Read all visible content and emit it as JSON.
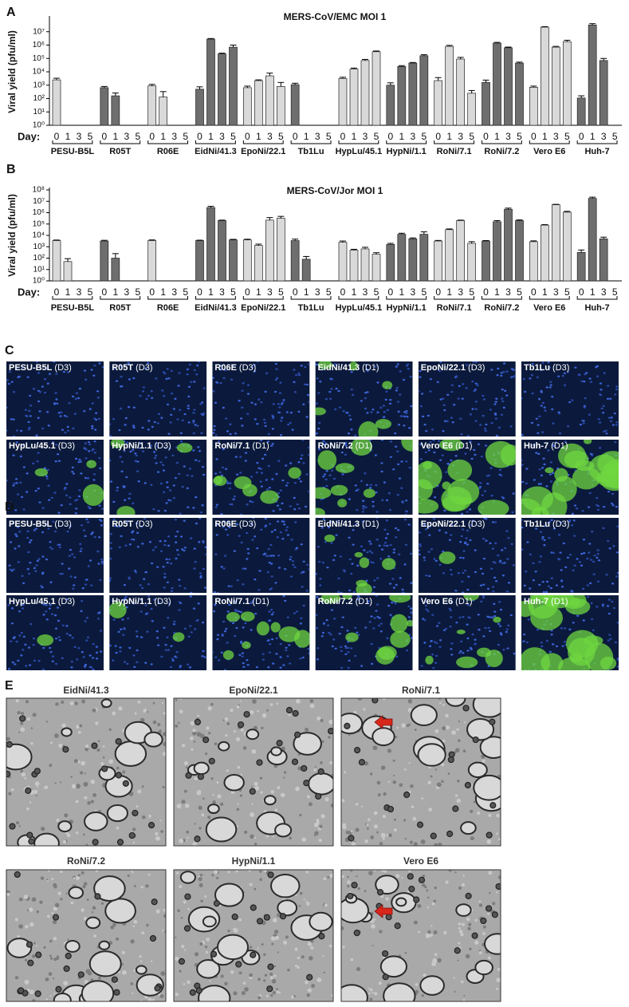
{
  "chart_data": [
    {
      "type": "bar",
      "panel": "A",
      "title": "MERS-CoV/EMC MOI 1",
      "ylabel": "Viral yield (pfu/ml)",
      "x_prefix": "Day:",
      "categories": [
        "PESU-B5L",
        "R05T",
        "R06E",
        "EidNi/41.3",
        "EpoNi/22.1",
        "Tb1Lu",
        "HypLu/45.1",
        "HypNi/1.1",
        "RoNi/7.1",
        "RoNi/7.2",
        "Vero E6",
        "Huh-7"
      ],
      "bar_colors": [
        "#d9d9d9",
        "#6e6e6e",
        "#d9d9d9",
        "#6e6e6e",
        "#d9d9d9",
        "#6e6e6e",
        "#d9d9d9",
        "#6e6e6e",
        "#d9d9d9",
        "#6e6e6e",
        "#d9d9d9",
        "#6e6e6e"
      ],
      "series": [
        {
          "name": "0",
          "values": [
            2500,
            650,
            900,
            500,
            650,
            1100,
            3200,
            1000,
            2200,
            1600,
            700,
            110
          ],
          "errors": [
            800,
            150,
            250,
            250,
            200,
            300,
            700,
            500,
            1500,
            800,
            150,
            50
          ]
        },
        {
          "name": "1",
          "values": [
            null,
            160,
            130,
            2800000,
            2200,
            null,
            16000,
            25000,
            800000,
            1400000,
            22000000,
            32000000
          ],
          "errors": [
            null,
            100,
            200,
            300000,
            300,
            null,
            3000,
            4000,
            150000,
            200000,
            2000000,
            8000000
          ]
        },
        {
          "name": "3",
          "values": [
            null,
            null,
            null,
            220000,
            5000,
            null,
            70000,
            45000,
            90000,
            630000,
            700000,
            70000
          ],
          "errors": [
            null,
            null,
            null,
            30000,
            3000,
            null,
            15000,
            5000,
            30000,
            80000,
            100000,
            30000
          ]
        },
        {
          "name": "5",
          "values": [
            null,
            null,
            null,
            700000,
            800,
            null,
            320000,
            160000,
            250,
            45000,
            1800000,
            null
          ],
          "errors": [
            null,
            null,
            null,
            300000,
            800,
            null,
            40000,
            30000,
            150,
            8000,
            500000,
            null
          ]
        }
      ],
      "log_scale": true,
      "ylim": [
        1,
        100000000
      ],
      "yticks": [
        {
          "value": 1,
          "label": "10⁰"
        },
        {
          "value": 10,
          "label": "10¹"
        },
        {
          "value": 100,
          "label": "10²"
        },
        {
          "value": 1000,
          "label": "10³"
        },
        {
          "value": 10000,
          "label": "10⁴"
        },
        {
          "value": 100000,
          "label": "10⁵"
        },
        {
          "value": 1000000,
          "label": "10⁶"
        },
        {
          "value": 10000000,
          "label": "10⁷"
        }
      ]
    },
    {
      "type": "bar",
      "panel": "B",
      "title": "MERS-CoV/Jor MOI 1",
      "ylabel": "Viral yield (pfu/ml)",
      "x_prefix": "Day:",
      "categories": [
        "PESU-B5L",
        "R05T",
        "R06E",
        "EidNi/41.3",
        "EpoNi/22.1",
        "Tb1Lu",
        "HypLu/45.1",
        "HypNi/1.1",
        "RoNi/7.1",
        "RoNi/7.2",
        "Vero E6",
        "Huh-7"
      ],
      "bar_colors": [
        "#d9d9d9",
        "#6e6e6e",
        "#d9d9d9",
        "#6e6e6e",
        "#d9d9d9",
        "#6e6e6e",
        "#d9d9d9",
        "#6e6e6e",
        "#d9d9d9",
        "#6e6e6e",
        "#d9d9d9",
        "#6e6e6e"
      ],
      "series": [
        {
          "name": "0",
          "values": [
            3500,
            3200,
            3500,
            3500,
            4000,
            3500,
            2500,
            1600,
            3200,
            3200,
            2800,
            320
          ],
          "errors": [
            400,
            500,
            500,
            300,
            600,
            1200,
            700,
            400,
            400,
            300,
            500,
            200
          ]
        },
        {
          "name": "1",
          "values": [
            50,
            100,
            null,
            2800000,
            1300,
            80,
            500,
            12500,
            32000,
            160000,
            80000,
            18000000
          ],
          "errors": [
            40,
            150,
            null,
            800000,
            400,
            60,
            100,
            3000,
            5000,
            40000,
            8000,
            5000000
          ]
        },
        {
          "name": "3",
          "values": [
            null,
            null,
            null,
            200000,
            220000,
            null,
            650,
            5000,
            200000,
            2000000,
            5000000,
            5000
          ],
          "errors": [
            null,
            null,
            null,
            20000,
            150000,
            null,
            250,
            1000,
            20000,
            500000,
            400000,
            2000
          ]
        },
        {
          "name": "5",
          "values": [
            null,
            null,
            null,
            4000,
            320000,
            null,
            220,
            12500,
            2000,
            200000,
            1100000,
            null
          ],
          "errors": [
            null,
            null,
            null,
            500,
            150000,
            null,
            80,
            8000,
            800,
            30000,
            200000,
            null
          ]
        }
      ],
      "log_scale": true,
      "ylim": [
        1,
        100000000
      ],
      "yticks": [
        {
          "value": 1,
          "label": "10⁰"
        },
        {
          "value": 10,
          "label": "10¹"
        },
        {
          "value": 100,
          "label": "10²"
        },
        {
          "value": 1000,
          "label": "10³"
        },
        {
          "value": 10000,
          "label": "10⁴"
        },
        {
          "value": 100000,
          "label": "10⁵"
        },
        {
          "value": 1000000,
          "label": "10⁶"
        },
        {
          "value": 10000000,
          "label": "10⁷"
        },
        {
          "value": 100000000,
          "label": "10⁸"
        }
      ]
    }
  ],
  "micrographs": [
    {
      "panel": "C",
      "images": [
        {
          "name": "PESU-B5L",
          "day": "(D3)"
        },
        {
          "name": "R05T",
          "day": "(D3)"
        },
        {
          "name": "R06E",
          "day": "(D3)"
        },
        {
          "name": "EidNi/41.3",
          "day": "(D1)"
        },
        {
          "name": "EpoNi/22.1",
          "day": "(D3)"
        },
        {
          "name": "Tb1Lu",
          "day": "(D3)"
        },
        {
          "name": "HypLu/45.1",
          "day": "(D3)"
        },
        {
          "name": "HypNi/1.1",
          "day": "(D3)"
        },
        {
          "name": "RoNi/7.1",
          "day": "(D1)"
        },
        {
          "name": "RoNi/7.2",
          "day": "(D1)"
        },
        {
          "name": "Vero E6",
          "day": "(D1)"
        },
        {
          "name": "Huh-7",
          "day": "(D1)"
        }
      ]
    },
    {
      "panel": "D",
      "images": [
        {
          "name": "PESU-B5L",
          "day": "(D3)"
        },
        {
          "name": "R05T",
          "day": "(D3)"
        },
        {
          "name": "R06E",
          "day": "(D3)"
        },
        {
          "name": "EidNi/41.3",
          "day": "(D1)"
        },
        {
          "name": "EpoNi/22.1",
          "day": "(D3)"
        },
        {
          "name": "Tb1Lu",
          "day": "(D3)"
        },
        {
          "name": "HypLu/45.1",
          "day": "(D3)"
        },
        {
          "name": "HypNi/1.1",
          "day": "(D3)"
        },
        {
          "name": "RoNi/7.1",
          "day": "(D1)"
        },
        {
          "name": "RoNi/7.2",
          "day": "(D1)"
        },
        {
          "name": "Vero E6",
          "day": "(D1)"
        },
        {
          "name": "Huh-7",
          "day": "(D1)"
        }
      ]
    }
  ],
  "em": {
    "panel": "E",
    "images": [
      "EidNi/41.3",
      "EpoNi/22.1",
      "RoNi/7.1",
      "RoNi/7.2",
      "HypNi/1.1",
      "Vero E6"
    ]
  }
}
